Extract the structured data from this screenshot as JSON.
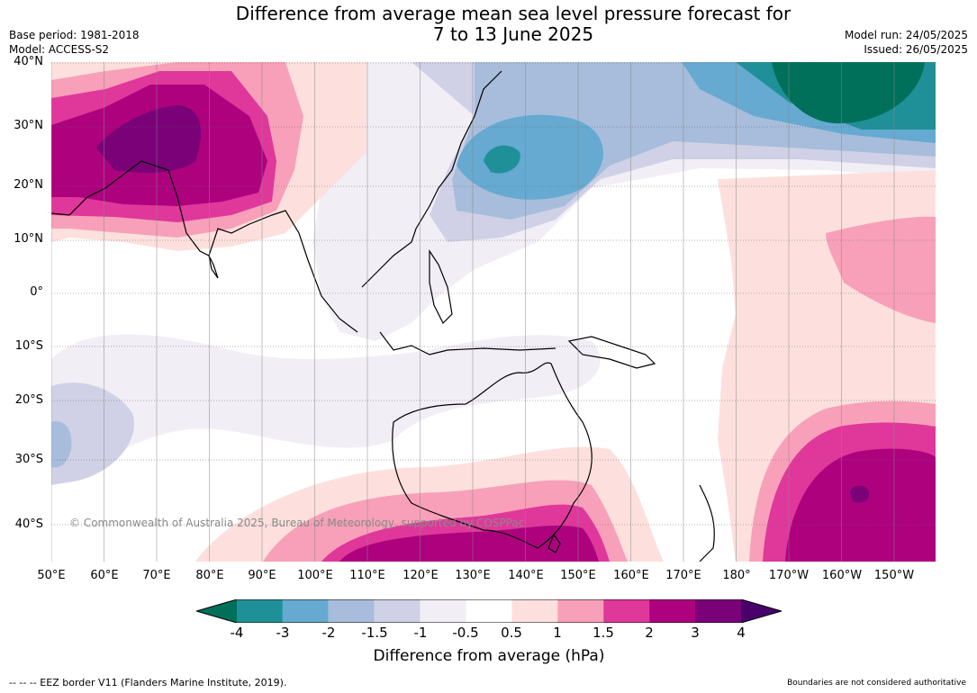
{
  "title": {
    "line1": "Difference from average mean sea level pressure forecast for",
    "line2": "7 to 13 June 2025"
  },
  "meta": {
    "base_period": "Base period: 1981-2018",
    "model": "Model: ACCESS-S2",
    "model_run": "Model run: 24/05/2025",
    "issued": "Issued: 26/05/2025"
  },
  "map": {
    "lat_labels": [
      "40°N",
      "30°N",
      "20°N",
      "10°N",
      "0°",
      "10°S",
      "20°S",
      "30°S",
      "40°S"
    ],
    "lon_labels": [
      "50°E",
      "60°E",
      "70°E",
      "80°E",
      "90°E",
      "100°E",
      "110°E",
      "120°E",
      "130°E",
      "140°E",
      "150°E",
      "160°E",
      "170°E",
      "180°",
      "170°W",
      "160°W",
      "150°W"
    ],
    "copyright": "© Commonwealth of Australia 2025, Bureau of Meteorology, supported by COSPPac"
  },
  "colorbar": {
    "ticks": [
      "-4",
      "-3",
      "-2",
      "-1.5",
      "-1",
      "-0.5",
      "0.5",
      "1",
      "1.5",
      "2",
      "3",
      "4"
    ],
    "colors": {
      "lt_-4": "#00705a",
      "-4_-3": "#1f9098",
      "-3_-2": "#66a9d1",
      "-2_-1.5": "#a7bddb",
      "-1.5_-1": "#d0d1e6",
      "-1_-0.5": "#f2eef6",
      "-0.5_0.5": "#ffffff",
      "0.5_1": "#fde0dd",
      "1_1.5": "#f8a0b9",
      "1.5_2": "#e0379b",
      "2_3": "#ad017e",
      "3_4": "#7a0177",
      "gt_4": "#49006a"
    },
    "title": "Difference from average (hPa)"
  },
  "footer": {
    "left": "--  --  -- EEZ border V11 (Flanders Marine Institute, 2019).",
    "right": "Boundaries are not considered authoritative"
  }
}
